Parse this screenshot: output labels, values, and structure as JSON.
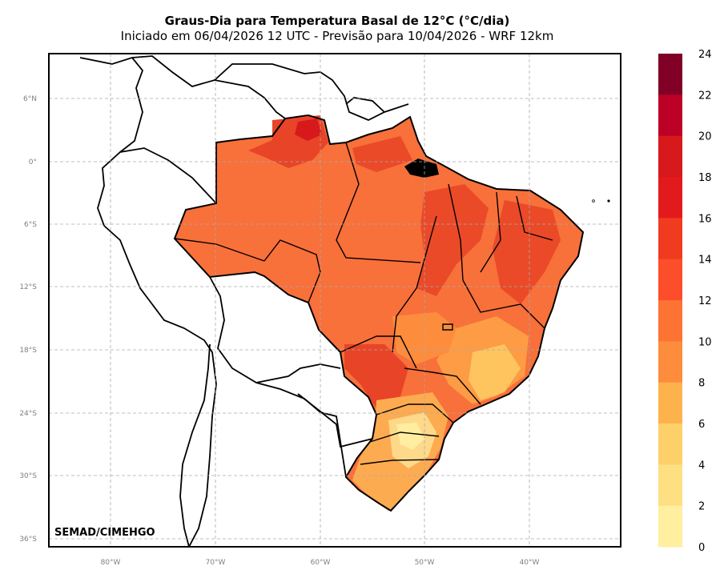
{
  "title": "Graus-Dia para Temperatura Basal de 12°C (°C/dia)",
  "subtitle": "Iniciado em 06/04/2026 12 UTC - Previsão para 10/04/2026 - WRF 12km",
  "credit": "SEMAD/CIMEHGO",
  "lat_labels": [
    "6°N",
    "0°",
    "6°S",
    "12°S",
    "18°S",
    "24°S",
    "30°S",
    "36°S"
  ],
  "lon_labels": [
    "80°W",
    "70°W",
    "60°W",
    "50°W",
    "40°W"
  ],
  "colorbar": {
    "labels": [
      "24",
      "22",
      "20",
      "18",
      "16",
      "14",
      "12",
      "10",
      "8",
      "6",
      "4",
      "2",
      "0"
    ],
    "colors": [
      "#800026",
      "#bd0026",
      "#d7191c",
      "#e31a1c",
      "#f03b20",
      "#fc4e2a",
      "#fd7334",
      "#fd8d3c",
      "#feb24c",
      "#fed06a",
      "#fedf82",
      "#ffef9f",
      "#ffffcc"
    ]
  }
}
